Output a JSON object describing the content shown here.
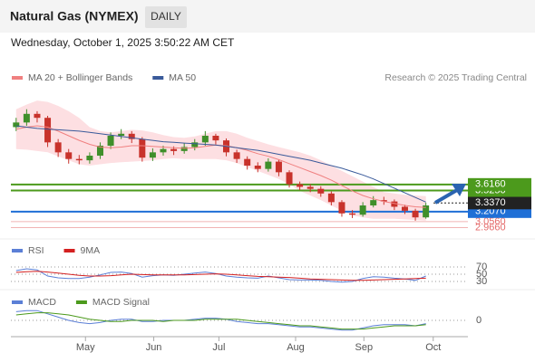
{
  "header": {
    "title": "Natural Gas (NYMEX)",
    "button": "DAILY",
    "date": "Wednesday, October 1, 2025 3:50:22 AM CET",
    "credit": "Research © 2025 Trading Central"
  },
  "chart_data": [
    {
      "type": "candlestick",
      "up_color": "#3f8f2a",
      "down_color": "#c8322b",
      "xlim": [
        0,
        43.5
      ],
      "xticks": [
        {
          "value": 7.1,
          "label": "May"
        },
        {
          "value": 13.6,
          "label": "Jun"
        },
        {
          "value": 19.8,
          "label": "Jul"
        },
        {
          "value": 27.1,
          "label": "Aug"
        },
        {
          "value": 33.6,
          "label": "Sep"
        },
        {
          "value": 40.2,
          "label": "Oct"
        }
      ],
      "ylim": [
        2.85,
        5.1
      ],
      "open": [
        4.48,
        4.55,
        4.68,
        4.62,
        4.25,
        4.1,
        4.0,
        3.98,
        4.05,
        4.2,
        4.35,
        4.38,
        4.3,
        4.02,
        4.1,
        4.15,
        4.12,
        4.18,
        4.25,
        4.35,
        4.28,
        4.1,
        4.0,
        3.9,
        3.85,
        3.96,
        3.8,
        3.62,
        3.58,
        3.55,
        3.48,
        3.35,
        3.18,
        3.16,
        3.3,
        3.38,
        3.36,
        3.28,
        3.22,
        3.12
      ],
      "high": [
        4.62,
        4.75,
        4.72,
        4.65,
        4.3,
        4.15,
        4.06,
        4.1,
        4.25,
        4.4,
        4.45,
        4.42,
        4.33,
        4.16,
        4.2,
        4.19,
        4.24,
        4.3,
        4.42,
        4.38,
        4.31,
        4.14,
        4.04,
        3.95,
        4.01,
        3.99,
        3.83,
        3.66,
        3.62,
        3.59,
        3.51,
        3.38,
        3.23,
        3.35,
        3.44,
        3.43,
        3.39,
        3.31,
        3.25,
        3.34
      ],
      "low": [
        4.42,
        4.5,
        4.55,
        4.18,
        4.03,
        3.93,
        3.92,
        3.93,
        4.0,
        4.15,
        4.3,
        4.24,
        3.96,
        3.97,
        4.05,
        4.06,
        4.08,
        4.13,
        4.2,
        4.22,
        4.04,
        3.94,
        3.84,
        3.8,
        3.81,
        3.74,
        3.57,
        3.53,
        3.5,
        3.43,
        3.3,
        3.13,
        3.11,
        3.13,
        3.27,
        3.31,
        3.23,
        3.17,
        3.07,
        3.1
      ],
      "close": [
        4.55,
        4.68,
        4.62,
        4.25,
        4.1,
        4.0,
        3.98,
        4.05,
        4.2,
        4.35,
        4.38,
        4.3,
        4.02,
        4.1,
        4.15,
        4.12,
        4.18,
        4.25,
        4.35,
        4.28,
        4.1,
        4.0,
        3.9,
        3.85,
        3.96,
        3.8,
        3.62,
        3.58,
        3.55,
        3.48,
        3.35,
        3.18,
        3.16,
        3.3,
        3.38,
        3.36,
        3.28,
        3.22,
        3.12,
        3.3
      ],
      "series": [
        {
          "name": "MA 20 + Bollinger Bands",
          "color": "#f08080",
          "band_color": "#fddfe2",
          "values": [
            4.45,
            4.48,
            4.5,
            4.48,
            4.42,
            4.35,
            4.28,
            4.22,
            4.18,
            4.17,
            4.18,
            4.2,
            4.2,
            4.19,
            4.18,
            4.17,
            4.16,
            4.17,
            4.19,
            4.21,
            4.2,
            4.17,
            4.13,
            4.08,
            4.04,
            3.99,
            3.93,
            3.87,
            3.81,
            3.75,
            3.68,
            3.6,
            3.52,
            3.45,
            3.4,
            3.36,
            3.33,
            3.3,
            3.28,
            3.27
          ],
          "upper": [
            4.75,
            4.82,
            4.88,
            4.86,
            4.8,
            4.72,
            4.62,
            4.48,
            4.42,
            4.4,
            4.42,
            4.44,
            4.43,
            4.4,
            4.36,
            4.33,
            4.32,
            4.34,
            4.38,
            4.42,
            4.42,
            4.38,
            4.32,
            4.27,
            4.22,
            4.18,
            4.14,
            4.1,
            4.05,
            3.98,
            3.9,
            3.82,
            3.74,
            3.66,
            3.58,
            3.5,
            3.48,
            3.46,
            3.45,
            3.44
          ],
          "lower": [
            4.15,
            4.14,
            4.12,
            4.1,
            4.04,
            3.98,
            3.92,
            3.9,
            3.92,
            3.94,
            3.95,
            3.96,
            3.97,
            3.98,
            4.0,
            4.01,
            4.0,
            4.0,
            4.0,
            4.0,
            3.98,
            3.94,
            3.88,
            3.82,
            3.76,
            3.7,
            3.62,
            3.52,
            3.45,
            3.38,
            3.3,
            3.22,
            3.15,
            3.12,
            3.1,
            3.1,
            3.1,
            3.09,
            3.08,
            3.07
          ]
        },
        {
          "name": "MA 50",
          "color": "#3a5a9a",
          "values": [
            4.5,
            4.48,
            4.46,
            4.45,
            4.44,
            4.43,
            4.42,
            4.4,
            4.38,
            4.36,
            4.34,
            4.32,
            4.3,
            4.28,
            4.26,
            4.25,
            4.24,
            4.23,
            4.22,
            4.21,
            4.19,
            4.17,
            4.15,
            4.13,
            4.1,
            4.07,
            4.04,
            4.01,
            3.98,
            3.94,
            3.9,
            3.86,
            3.81,
            3.76,
            3.7,
            3.63,
            3.56,
            3.49,
            3.42,
            3.35
          ]
        }
      ],
      "levels": [
        {
          "value": 3.616,
          "label": "3.6160",
          "color": "#4c9a1c",
          "box": true
        },
        {
          "value": 3.525,
          "label": "3.5250",
          "color": "#4c9a1c",
          "box": true
        },
        {
          "value": 3.337,
          "label": "3.3370",
          "color": "#222222",
          "box": true,
          "dotted": true
        },
        {
          "value": 3.207,
          "label": "3.2070",
          "color": "#1f6fd6",
          "box": true
        },
        {
          "value": 3.056,
          "label": "3.0560",
          "color": "#e46a6a",
          "box": false
        },
        {
          "value": 2.966,
          "label": "2.9660",
          "color": "#e46a6a",
          "box": false
        }
      ]
    },
    {
      "type": "line",
      "ylim": [
        20,
        85
      ],
      "yticks": [
        30,
        50,
        70
      ],
      "series": [
        {
          "name": "RSI",
          "color": "#5b7fd6",
          "values": [
            60,
            65,
            62,
            45,
            40,
            38,
            38,
            42,
            48,
            55,
            56,
            52,
            42,
            46,
            48,
            47,
            50,
            53,
            56,
            52,
            45,
            42,
            40,
            39,
            45,
            40,
            35,
            34,
            34,
            33,
            30,
            28,
            30,
            38,
            43,
            42,
            39,
            37,
            33,
            45
          ]
        },
        {
          "name": "9MA",
          "color": "#d42020",
          "values": [
            55,
            57,
            58,
            56,
            53,
            50,
            47,
            45,
            45,
            46,
            48,
            50,
            49,
            48,
            48,
            48,
            48,
            49,
            50,
            51,
            50,
            48,
            46,
            44,
            43,
            42,
            41,
            39,
            37,
            36,
            35,
            34,
            33,
            33,
            34,
            35,
            36,
            37,
            38,
            39
          ]
        }
      ]
    },
    {
      "type": "line",
      "ylim": [
        -0.15,
        0.15
      ],
      "yticks": [
        0
      ],
      "series": [
        {
          "name": "MACD",
          "color": "#5b7fd6",
          "values": [
            0.08,
            0.09,
            0.09,
            0.06,
            0.03,
            0.0,
            -0.02,
            -0.03,
            -0.02,
            0.0,
            0.01,
            0.01,
            -0.01,
            -0.01,
            0.0,
            0.0,
            0.0,
            0.01,
            0.02,
            0.02,
            0.01,
            -0.01,
            -0.02,
            -0.03,
            -0.03,
            -0.04,
            -0.05,
            -0.06,
            -0.06,
            -0.07,
            -0.08,
            -0.09,
            -0.09,
            -0.07,
            -0.05,
            -0.04,
            -0.04,
            -0.04,
            -0.05,
            -0.03
          ]
        },
        {
          "name": "MACD Signal",
          "color": "#4c9a1c",
          "values": [
            0.05,
            0.06,
            0.07,
            0.07,
            0.06,
            0.05,
            0.03,
            0.01,
            0.0,
            -0.01,
            -0.01,
            0.0,
            0.0,
            0.0,
            -0.01,
            0.0,
            0.0,
            0.0,
            0.01,
            0.01,
            0.01,
            0.01,
            0.0,
            -0.01,
            -0.02,
            -0.03,
            -0.04,
            -0.05,
            -0.05,
            -0.06,
            -0.07,
            -0.08,
            -0.08,
            -0.08,
            -0.07,
            -0.06,
            -0.05,
            -0.05,
            -0.05,
            -0.04
          ]
        }
      ]
    }
  ]
}
